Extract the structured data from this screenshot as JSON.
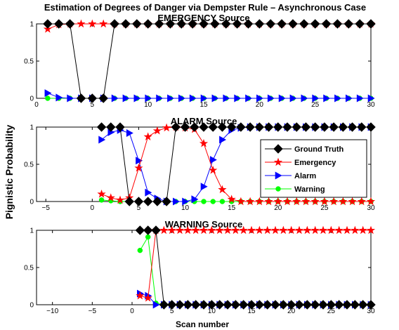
{
  "figure": {
    "suptitle": "Estimation of Degrees of Danger via Dempster Rule – Asynchronous Case",
    "ylabel": "Pignistic Probability",
    "xlabel": "Scan number"
  },
  "legend": {
    "placement": "inside-right of middle panel",
    "entries": [
      {
        "name": "Ground Truth",
        "color": "#000000",
        "marker": "diamond"
      },
      {
        "name": "Emergency",
        "color": "#ff0000",
        "marker": "star"
      },
      {
        "name": "Alarm",
        "color": "#0000ff",
        "marker": "triangle-right"
      },
      {
        "name": "Warning",
        "color": "#00ff00",
        "marker": "circle"
      }
    ]
  },
  "chart_data": [
    {
      "type": "line",
      "title": "EMERGENCY Source",
      "xlim": [
        0,
        30
      ],
      "ylim": [
        0,
        1
      ],
      "xticks": [
        0,
        5,
        10,
        15,
        20,
        25,
        30
      ],
      "yticks": [
        0,
        0.5,
        1
      ],
      "series": [
        {
          "name": "Ground Truth",
          "color": "#000000",
          "marker": "diamond",
          "x": [
            1,
            2,
            3,
            4,
            5,
            6,
            7,
            8,
            9,
            10,
            11,
            12,
            13,
            14,
            15,
            16,
            17,
            18,
            19,
            20,
            21,
            22,
            23,
            24,
            25,
            26,
            27,
            28,
            29,
            30
          ],
          "y": [
            1,
            1,
            1,
            0,
            0,
            0,
            1,
            1,
            1,
            1,
            1,
            1,
            1,
            1,
            1,
            1,
            1,
            1,
            1,
            1,
            1,
            1,
            1,
            1,
            1,
            1,
            1,
            1,
            1,
            1
          ]
        },
        {
          "name": "Emergency",
          "color": "#ff0000",
          "marker": "star",
          "x": [
            1,
            2,
            3,
            4,
            5,
            6,
            7,
            8,
            9,
            10,
            11,
            12,
            13,
            14,
            15,
            16,
            17,
            18,
            19,
            20,
            21,
            22,
            23,
            24,
            25,
            26,
            27,
            28,
            29,
            30
          ],
          "y": [
            0.93,
            0.99,
            1,
            1,
            1,
            1,
            1,
            1,
            1,
            1,
            1,
            1,
            1,
            1,
            1,
            1,
            1,
            1,
            1,
            1,
            1,
            1,
            1,
            1,
            1,
            1,
            1,
            1,
            1,
            1
          ]
        },
        {
          "name": "Alarm",
          "color": "#0000ff",
          "marker": "triangle-right",
          "x": [
            1,
            2,
            3,
            4,
            5,
            6,
            7,
            8,
            9,
            10,
            11,
            12,
            13,
            14,
            15,
            16,
            17,
            18,
            19,
            20,
            21,
            22,
            23,
            24,
            25,
            26,
            27,
            28,
            29,
            30
          ],
          "y": [
            0.07,
            0.01,
            0,
            0,
            0,
            0,
            0,
            0,
            0,
            0,
            0,
            0,
            0,
            0,
            0,
            0,
            0,
            0,
            0,
            0,
            0,
            0,
            0,
            0,
            0,
            0,
            0,
            0,
            0,
            0
          ]
        },
        {
          "name": "Warning",
          "color": "#00ff00",
          "marker": "circle",
          "x": [
            1,
            2,
            3,
            4,
            5,
            6,
            7,
            8,
            9,
            10,
            11,
            12,
            13,
            14,
            15,
            16,
            17,
            18,
            19,
            20,
            21,
            22,
            23,
            24,
            25,
            26,
            27,
            28,
            29,
            30
          ],
          "y": [
            0,
            0,
            0,
            0,
            0,
            0,
            0,
            0,
            0,
            0,
            0,
            0,
            0,
            0,
            0,
            0,
            0,
            0,
            0,
            0,
            0,
            0,
            0,
            0,
            0,
            0,
            0,
            0,
            0,
            0
          ]
        }
      ]
    },
    {
      "type": "line",
      "title": "ALARM Source",
      "xlim": [
        -6,
        30
      ],
      "ylim": [
        0,
        1
      ],
      "xticks": [
        -5,
        0,
        5,
        10,
        15,
        20,
        25,
        30
      ],
      "yticks": [
        0,
        0.5,
        1
      ],
      "series": [
        {
          "name": "Ground Truth",
          "color": "#000000",
          "marker": "diamond",
          "x": [
            1,
            2,
            3,
            4,
            5,
            6,
            7,
            8,
            9,
            10,
            11,
            12,
            13,
            14,
            15,
            16,
            17,
            18,
            19,
            20,
            21,
            22,
            23,
            24,
            25,
            26,
            27,
            28,
            29,
            30
          ],
          "y": [
            1,
            1,
            1,
            0,
            0,
            0,
            0,
            0,
            1,
            1,
            1,
            1,
            1,
            1,
            1,
            1,
            1,
            1,
            1,
            1,
            1,
            1,
            1,
            1,
            1,
            1,
            1,
            1,
            1,
            1
          ]
        },
        {
          "name": "Emergency",
          "color": "#ff0000",
          "marker": "star",
          "x": [
            1,
            2,
            3,
            4,
            5,
            6,
            7,
            8,
            9,
            10,
            11,
            12,
            13,
            14,
            15,
            16,
            17,
            18,
            19,
            20,
            21,
            22,
            23,
            24,
            25,
            26,
            27,
            28,
            29,
            30
          ],
          "y": [
            0.1,
            0.05,
            0.02,
            0.05,
            0.45,
            0.87,
            0.95,
            0.99,
            1,
            0.99,
            0.97,
            0.78,
            0.42,
            0.16,
            0.03,
            0,
            0,
            0,
            0,
            0,
            0,
            0,
            0,
            0,
            0,
            0,
            0,
            0,
            0,
            0
          ]
        },
        {
          "name": "Alarm",
          "color": "#0000ff",
          "marker": "triangle-right",
          "x": [
            1,
            2,
            3,
            4,
            5,
            6,
            7,
            8,
            9,
            10,
            11,
            12,
            13,
            14,
            15,
            16,
            17,
            18,
            19,
            20,
            21,
            22,
            23,
            24,
            25,
            26,
            27,
            28,
            29,
            30
          ],
          "y": [
            0.83,
            0.93,
            0.96,
            0.92,
            0.55,
            0.12,
            0.04,
            0,
            0,
            0,
            0.03,
            0.2,
            0.56,
            0.83,
            0.96,
            0.99,
            1,
            1,
            1,
            1,
            1,
            1,
            1,
            1,
            1,
            1,
            1,
            1,
            1,
            1
          ]
        },
        {
          "name": "Warning",
          "color": "#00ff00",
          "marker": "circle",
          "x": [
            1,
            2,
            3,
            4,
            5,
            6,
            7,
            8,
            9,
            10,
            11,
            12,
            13,
            14,
            15,
            16,
            17,
            18,
            19,
            20,
            21,
            22,
            23,
            24,
            25,
            26,
            27,
            28,
            29,
            30
          ],
          "y": [
            0.02,
            0.01,
            0,
            0,
            0,
            0,
            0,
            0,
            0,
            0,
            0,
            0,
            0,
            0,
            0,
            0,
            0,
            0,
            0,
            0,
            0,
            0,
            0,
            0,
            0,
            0,
            0,
            0,
            0,
            0
          ]
        }
      ]
    },
    {
      "type": "line",
      "title": "WARNING Source",
      "xlim": [
        -12,
        30
      ],
      "ylim": [
        0,
        1
      ],
      "xticks": [
        -10,
        -5,
        0,
        5,
        10,
        15,
        20,
        25,
        30
      ],
      "yticks": [
        0,
        0.5,
        1
      ],
      "series": [
        {
          "name": "Ground Truth",
          "color": "#000000",
          "marker": "diamond",
          "x": [
            1,
            2,
            3,
            4,
            5,
            6,
            7,
            8,
            9,
            10,
            11,
            12,
            13,
            14,
            15,
            16,
            17,
            18,
            19,
            20,
            21,
            22,
            23,
            24,
            25,
            26,
            27,
            28,
            29,
            30
          ],
          "y": [
            1,
            1,
            1,
            0,
            0,
            0,
            0,
            0,
            0,
            0,
            0,
            0,
            0,
            0,
            0,
            0,
            0,
            0,
            0,
            0,
            0,
            0,
            0,
            0,
            0,
            0,
            0,
            0,
            0,
            0
          ]
        },
        {
          "name": "Emergency",
          "color": "#ff0000",
          "marker": "star",
          "x": [
            1,
            2,
            3,
            4,
            5,
            6,
            7,
            8,
            9,
            10,
            11,
            12,
            13,
            14,
            15,
            16,
            17,
            18,
            19,
            20,
            21,
            22,
            23,
            24,
            25,
            26,
            27,
            28,
            29,
            30
          ],
          "y": [
            0.12,
            0.09,
            1,
            1,
            1,
            1,
            1,
            1,
            1,
            1,
            1,
            1,
            1,
            1,
            1,
            1,
            1,
            1,
            1,
            1,
            1,
            1,
            1,
            1,
            1,
            1,
            1,
            1,
            1,
            1
          ]
        },
        {
          "name": "Alarm",
          "color": "#0000ff",
          "marker": "triangle-right",
          "x": [
            1,
            2,
            3,
            4,
            5,
            6,
            7,
            8,
            9,
            10,
            11,
            12,
            13,
            14,
            15,
            16,
            17,
            18,
            19,
            20,
            21,
            22,
            23,
            24,
            25,
            26,
            27,
            28,
            29,
            30
          ],
          "y": [
            0.15,
            0.12,
            0,
            0,
            0,
            0,
            0,
            0,
            0,
            0,
            0,
            0,
            0,
            0,
            0,
            0,
            0,
            0,
            0,
            0,
            0,
            0,
            0,
            0,
            0,
            0,
            0,
            0,
            0,
            0
          ]
        },
        {
          "name": "Warning",
          "color": "#00ff00",
          "marker": "circle",
          "x": [
            1,
            2,
            3,
            4,
            5,
            6,
            7,
            8,
            9,
            10,
            11,
            12,
            13,
            14,
            15,
            16,
            17,
            18,
            19,
            20,
            21,
            22,
            23,
            24,
            25,
            26,
            27,
            28,
            29,
            30
          ],
          "y": [
            0.73,
            0.91,
            0.02,
            0,
            0,
            0,
            0,
            0,
            0,
            0,
            0,
            0,
            0,
            0,
            0,
            0,
            0,
            0,
            0,
            0,
            0,
            0,
            0,
            0,
            0,
            0,
            0,
            0,
            0,
            0
          ]
        }
      ]
    }
  ]
}
